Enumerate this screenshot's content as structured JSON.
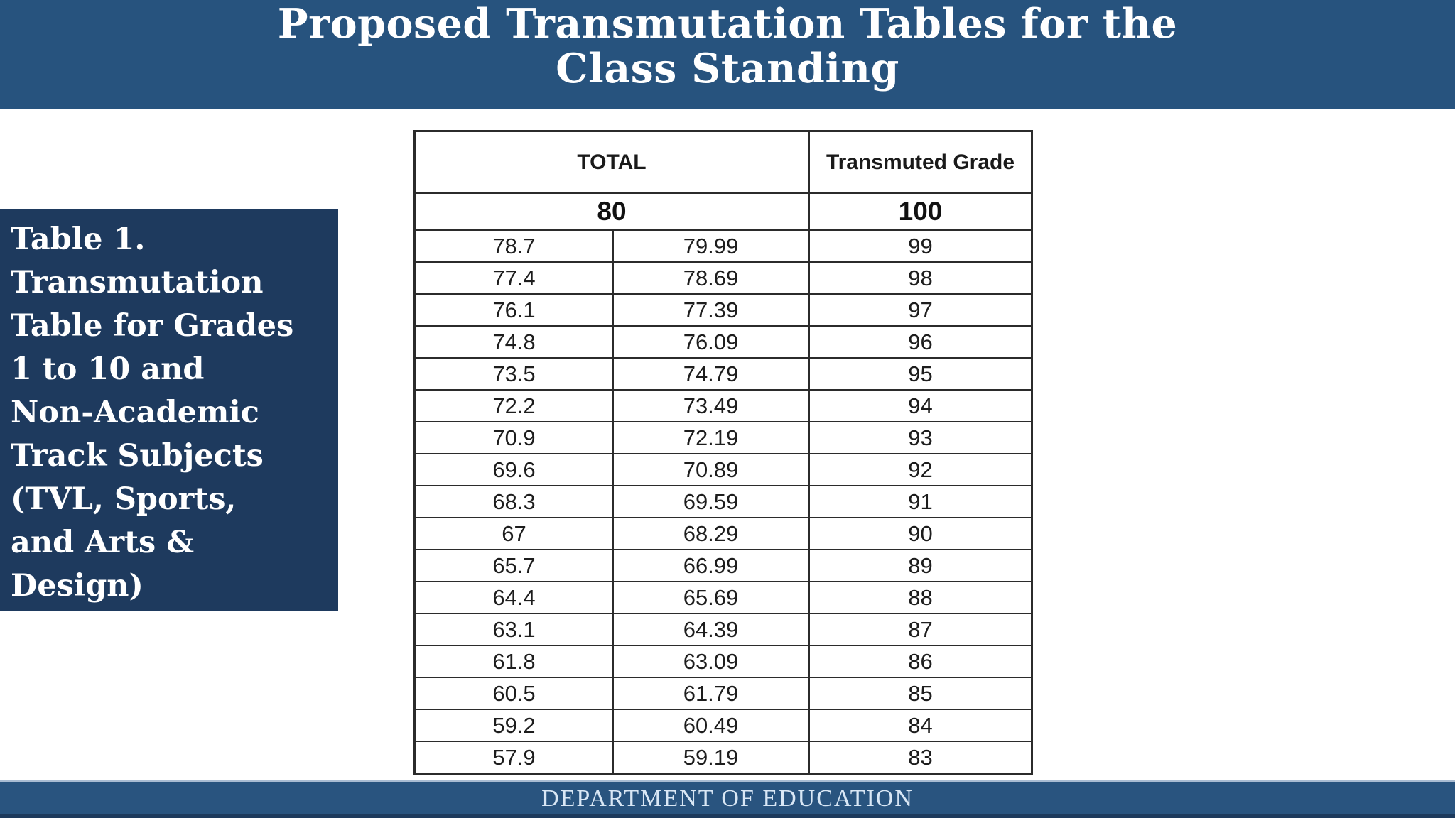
{
  "title": {
    "line1": "Proposed Transmutation Tables for the",
    "line2": "Class Standing"
  },
  "caption": {
    "text": "Table 1.\nTransmutation\nTable for Grades\n1 to 10 and\nNon-Academic\nTrack Subjects\n(TVL, Sports,\nand Arts &\nDesign)"
  },
  "table": {
    "header": {
      "total_label": "TOTAL",
      "transmuted_label": "Transmuted Grade",
      "total_base": "80",
      "transmuted_base": "100"
    },
    "rows": [
      [
        "78.7",
        "79.99",
        "99"
      ],
      [
        "77.4",
        "78.69",
        "98"
      ],
      [
        "76.1",
        "77.39",
        "97"
      ],
      [
        "74.8",
        "76.09",
        "96"
      ],
      [
        "73.5",
        "74.79",
        "95"
      ],
      [
        "72.2",
        "73.49",
        "94"
      ],
      [
        "70.9",
        "72.19",
        "93"
      ],
      [
        "69.6",
        "70.89",
        "92"
      ],
      [
        "68.3",
        "69.59",
        "91"
      ],
      [
        "67",
        "68.29",
        "90"
      ],
      [
        "65.7",
        "66.99",
        "89"
      ],
      [
        "64.4",
        "65.69",
        "88"
      ],
      [
        "63.1",
        "64.39",
        "87"
      ],
      [
        "61.8",
        "63.09",
        "86"
      ],
      [
        "60.5",
        "61.79",
        "85"
      ],
      [
        "59.2",
        "60.49",
        "84"
      ],
      [
        "57.9",
        "59.19",
        "83"
      ]
    ]
  },
  "footer": {
    "text": "DEPARTMENT OF EDUCATION"
  },
  "colors": {
    "banner_blue": "#27537e",
    "caption_navy": "#1e3a5e",
    "footer_blue": "#29547f",
    "table_border": "#2b2b2b",
    "footer_text": "#d9e7f5"
  }
}
